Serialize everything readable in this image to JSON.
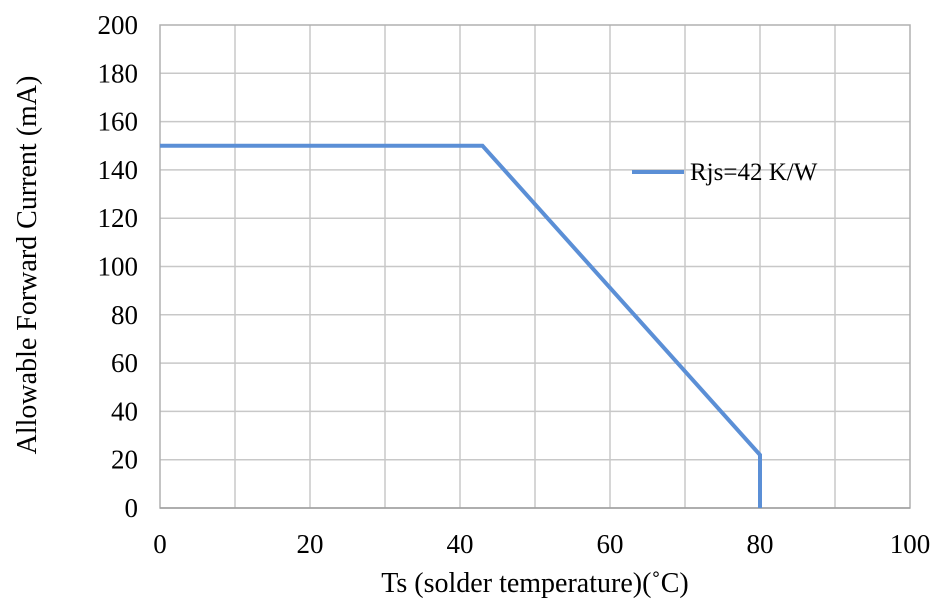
{
  "chart_data": {
    "type": "line",
    "title": "",
    "xlabel": "Ts  (solder temperature)(˚C)",
    "ylabel": "Allowable Forward Current (mA)",
    "xlim": [
      0,
      100
    ],
    "ylim": [
      0,
      200
    ],
    "xticks": [
      0,
      20,
      40,
      60,
      80,
      100
    ],
    "yticks": [
      0,
      20,
      40,
      60,
      80,
      100,
      120,
      140,
      160,
      180,
      200
    ],
    "x_tick_labels": [
      "0",
      "20",
      "40",
      "60",
      "80",
      "100"
    ],
    "y_tick_labels": [
      "0",
      "20",
      "40",
      "60",
      "80",
      "100",
      "120",
      "140",
      "160",
      "180",
      "200"
    ],
    "grid": true,
    "grid_x_step": 10,
    "grid_y_step": 20,
    "legend_position": "top-right",
    "series": [
      {
        "name": "Rjs=42 K/W",
        "color": "#5B8FD6",
        "points": [
          [
            0,
            150
          ],
          [
            43,
            150
          ],
          [
            80,
            22
          ],
          [
            80,
            0
          ]
        ]
      }
    ]
  }
}
